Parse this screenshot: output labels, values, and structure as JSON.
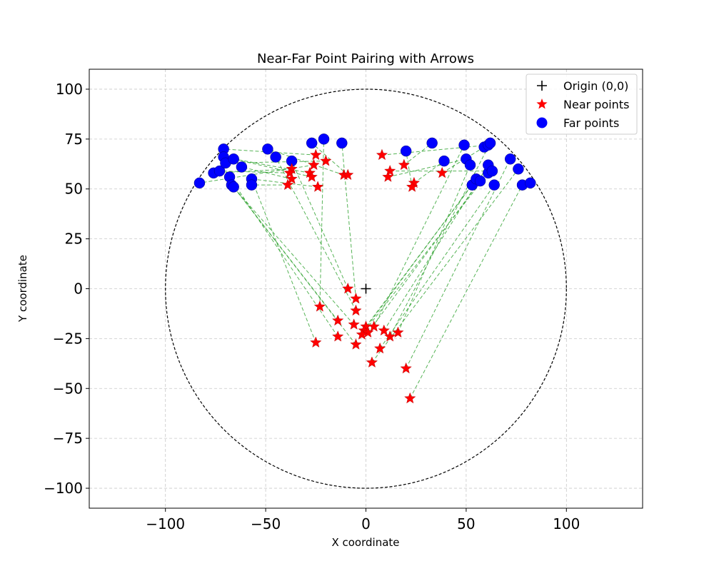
{
  "chart_data": {
    "type": "scatter",
    "title": "Near-Far Point Pairing with Arrows",
    "xlabel": "X coordinate",
    "ylabel": "Y coordinate",
    "xlim": [
      -138,
      138
    ],
    "ylim": [
      -110,
      110
    ],
    "xticks": [
      -100,
      -50,
      0,
      50,
      100
    ],
    "yticks": [
      -100,
      -75,
      -50,
      -25,
      0,
      25,
      50,
      75,
      100
    ],
    "xtick_labels": [
      "−100",
      "−50",
      "0",
      "50",
      "100"
    ],
    "ytick_labels": [
      "−100",
      "−75",
      "−50",
      "−25",
      "0",
      "25",
      "50",
      "75",
      "100"
    ],
    "grid": true,
    "legend_position": "top-right",
    "circle_radius": 100,
    "colors": {
      "origin": "#000000",
      "near": "#ff0000",
      "far": "#0000ff",
      "arrow": "#2ca02c",
      "circle": "#000000"
    },
    "series": [
      {
        "name": "Origin (0,0)",
        "marker": "plus",
        "points": [
          [
            0,
            0
          ]
        ]
      },
      {
        "name": "Near points",
        "marker": "star",
        "points": [
          [
            -25,
            67
          ],
          [
            -20,
            64
          ],
          [
            -26,
            62
          ],
          [
            -37,
            60
          ],
          [
            -38,
            58
          ],
          [
            -28,
            58
          ],
          [
            -27,
            56
          ],
          [
            -37,
            55
          ],
          [
            -39,
            52
          ],
          [
            -24,
            51
          ],
          [
            -11,
            57
          ],
          [
            -9,
            57
          ],
          [
            8,
            67
          ],
          [
            12,
            59
          ],
          [
            11,
            56
          ],
          [
            19,
            62
          ],
          [
            24,
            53
          ],
          [
            23,
            51
          ],
          [
            38,
            58
          ],
          [
            -9,
            0
          ],
          [
            -5,
            -5
          ],
          [
            -23,
            -9
          ],
          [
            -5,
            -11
          ],
          [
            -14,
            -16
          ],
          [
            -6,
            -18
          ],
          [
            0,
            -19
          ],
          [
            -1,
            -21
          ],
          [
            1,
            -22
          ],
          [
            4,
            -19
          ],
          [
            -2,
            -23
          ],
          [
            9,
            -21
          ],
          [
            -14,
            -24
          ],
          [
            12,
            -24
          ],
          [
            16,
            -22
          ],
          [
            -25,
            -27
          ],
          [
            -5,
            -28
          ],
          [
            7,
            -30
          ],
          [
            3,
            -37
          ],
          [
            20,
            -40
          ],
          [
            22,
            -55
          ]
        ]
      },
      {
        "name": "Far points",
        "marker": "circle",
        "points": [
          [
            -83,
            53
          ],
          [
            -76,
            58
          ],
          [
            -73,
            59
          ],
          [
            -71,
            70
          ],
          [
            -71,
            66
          ],
          [
            -70,
            63
          ],
          [
            -68,
            56
          ],
          [
            -67,
            52
          ],
          [
            -66,
            51
          ],
          [
            -66,
            65
          ],
          [
            -62,
            61
          ],
          [
            -57,
            55
          ],
          [
            -57,
            52
          ],
          [
            -49,
            70
          ],
          [
            -45,
            66
          ],
          [
            -37,
            64
          ],
          [
            -27,
            73
          ],
          [
            -21,
            75
          ],
          [
            -12,
            73
          ],
          [
            20,
            69
          ],
          [
            33,
            73
          ],
          [
            39,
            64
          ],
          [
            49,
            72
          ],
          [
            50,
            65
          ],
          [
            52,
            62
          ],
          [
            53,
            52
          ],
          [
            55,
            55
          ],
          [
            57,
            54
          ],
          [
            59,
            71
          ],
          [
            61,
            72
          ],
          [
            62,
            73
          ],
          [
            61,
            58
          ],
          [
            61,
            62
          ],
          [
            63,
            59
          ],
          [
            64,
            52
          ],
          [
            72,
            65
          ],
          [
            76,
            60
          ],
          [
            78,
            52
          ],
          [
            82,
            53
          ]
        ]
      }
    ],
    "arrows": [
      [
        -25,
        67,
        -71,
        70
      ],
      [
        -20,
        64,
        -70,
        63
      ],
      [
        -26,
        62,
        -83,
        53
      ],
      [
        -37,
        60,
        -76,
        58
      ],
      [
        -38,
        58,
        -73,
        59
      ],
      [
        -28,
        58,
        -71,
        66
      ],
      [
        -27,
        56,
        -66,
        65
      ],
      [
        -37,
        55,
        -62,
        61
      ],
      [
        -39,
        52,
        -57,
        52
      ],
      [
        -24,
        51,
        -57,
        55
      ],
      [
        -11,
        57,
        -49,
        70
      ],
      [
        -9,
        57,
        -27,
        73
      ],
      [
        8,
        67,
        61,
        72
      ],
      [
        12,
        59,
        63,
        59
      ],
      [
        11,
        56,
        50,
        65
      ],
      [
        19,
        62,
        33,
        73
      ],
      [
        24,
        53,
        39,
        64
      ],
      [
        23,
        51,
        20,
        69
      ],
      [
        38,
        58,
        59,
        71
      ],
      [
        -9,
        0,
        -37,
        64
      ],
      [
        -5,
        -5,
        -12,
        73
      ],
      [
        -23,
        -9,
        -21,
        75
      ],
      [
        -5,
        -11,
        -45,
        66
      ],
      [
        -14,
        -16,
        -66,
        51
      ],
      [
        -6,
        -18,
        -67,
        52
      ],
      [
        0,
        -19,
        53,
        52
      ],
      [
        -1,
        -21,
        55,
        55
      ],
      [
        1,
        -22,
        57,
        54
      ],
      [
        4,
        -19,
        49,
        72
      ],
      [
        -2,
        -23,
        61,
        58
      ],
      [
        9,
        -21,
        61,
        62
      ],
      [
        -14,
        -24,
        -68,
        56
      ],
      [
        12,
        -24,
        62,
        73
      ],
      [
        16,
        -22,
        52,
        62
      ],
      [
        -25,
        -27,
        -57,
        55
      ],
      [
        -5,
        -28,
        -66,
        51
      ],
      [
        7,
        -30,
        64,
        52
      ],
      [
        3,
        -37,
        76,
        60
      ],
      [
        20,
        -40,
        72,
        65
      ],
      [
        22,
        -55,
        78,
        52
      ]
    ]
  }
}
